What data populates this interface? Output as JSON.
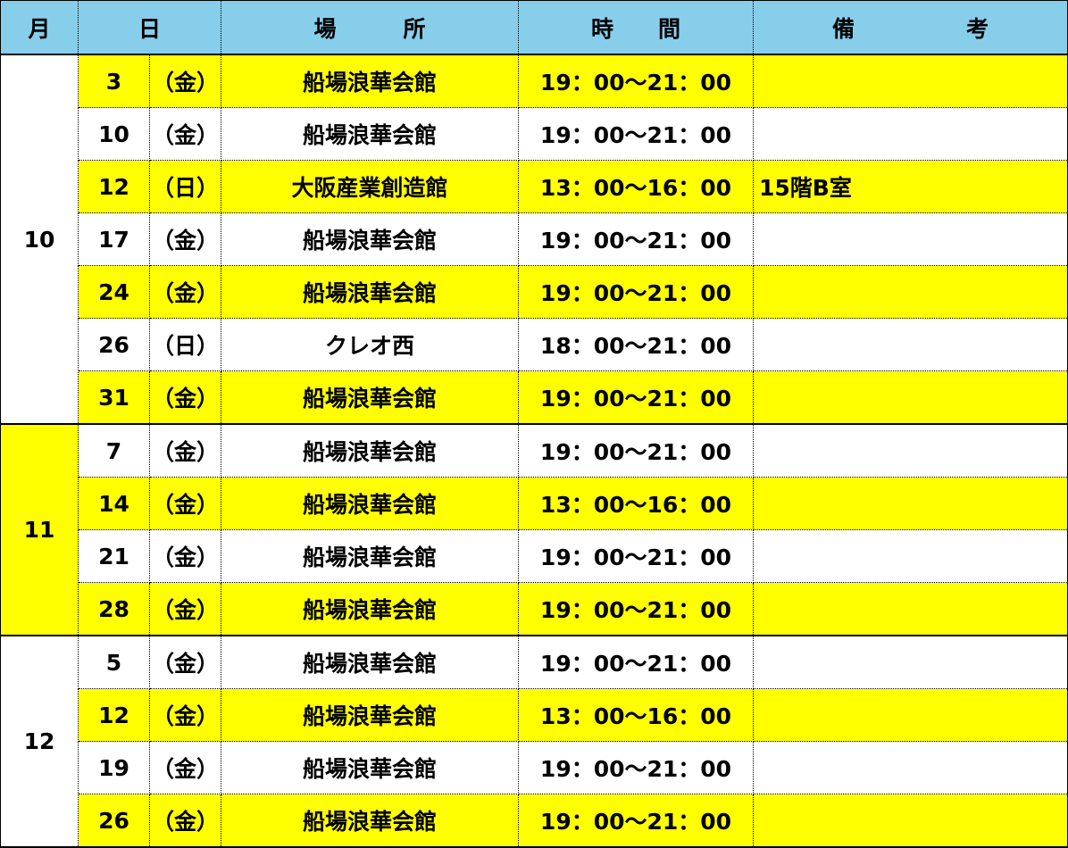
{
  "header": {
    "month": "月",
    "day": "日",
    "place": "場　　　所",
    "time": "時　　間",
    "note": "備　　　　　考"
  },
  "colors": {
    "header": "#87CEEB",
    "highlight": "#FFFF00"
  },
  "groups": [
    {
      "month": "10",
      "highlight": false,
      "rows": [
        {
          "day": "3",
          "weekday": "（金）",
          "place": "船場浪華会館",
          "time": "19：00～21：00",
          "note": "",
          "highlight": true
        },
        {
          "day": "10",
          "weekday": "（金）",
          "place": "船場浪華会館",
          "time": "19：00～21：00",
          "note": "",
          "highlight": false
        },
        {
          "day": "12",
          "weekday": "（日）",
          "place": "大阪産業創造館",
          "time": "13：00～16：00",
          "note": "15階B室",
          "highlight": true
        },
        {
          "day": "17",
          "weekday": "（金）",
          "place": "船場浪華会館",
          "time": "19：00～21：00",
          "note": "",
          "highlight": false
        },
        {
          "day": "24",
          "weekday": "（金）",
          "place": "船場浪華会館",
          "time": "19：00～21：00",
          "note": "",
          "highlight": true
        },
        {
          "day": "26",
          "weekday": "（日）",
          "place": "クレオ西",
          "time": "18：00～21：00",
          "note": "",
          "highlight": false
        },
        {
          "day": "31",
          "weekday": "（金）",
          "place": "船場浪華会館",
          "time": "19：00～21：00",
          "note": "",
          "highlight": true
        }
      ]
    },
    {
      "month": "11",
      "highlight": true,
      "rows": [
        {
          "day": "7",
          "weekday": "（金）",
          "place": "船場浪華会館",
          "time": "19：00～21：00",
          "note": "",
          "highlight": false
        },
        {
          "day": "14",
          "weekday": "（金）",
          "place": "船場浪華会館",
          "time": "13：00～16：00",
          "note": "",
          "highlight": true
        },
        {
          "day": "21",
          "weekday": "（金）",
          "place": "船場浪華会館",
          "time": "19：00～21：00",
          "note": "",
          "highlight": false
        },
        {
          "day": "28",
          "weekday": "（金）",
          "place": "船場浪華会館",
          "time": "19：00～21：00",
          "note": "",
          "highlight": true
        }
      ]
    },
    {
      "month": "12",
      "highlight": false,
      "rows": [
        {
          "day": "5",
          "weekday": "（金）",
          "place": "船場浪華会館",
          "time": "19：00～21：00",
          "note": "",
          "highlight": false
        },
        {
          "day": "12",
          "weekday": "（金）",
          "place": "船場浪華会館",
          "time": "13：00～16：00",
          "note": "",
          "highlight": true
        },
        {
          "day": "19",
          "weekday": "（金）",
          "place": "船場浪華会館",
          "time": "19：00～21：00",
          "note": "",
          "highlight": false
        },
        {
          "day": "26",
          "weekday": "（金）",
          "place": "船場浪華会館",
          "time": "19：00～21：00",
          "note": "",
          "highlight": true
        }
      ]
    }
  ]
}
